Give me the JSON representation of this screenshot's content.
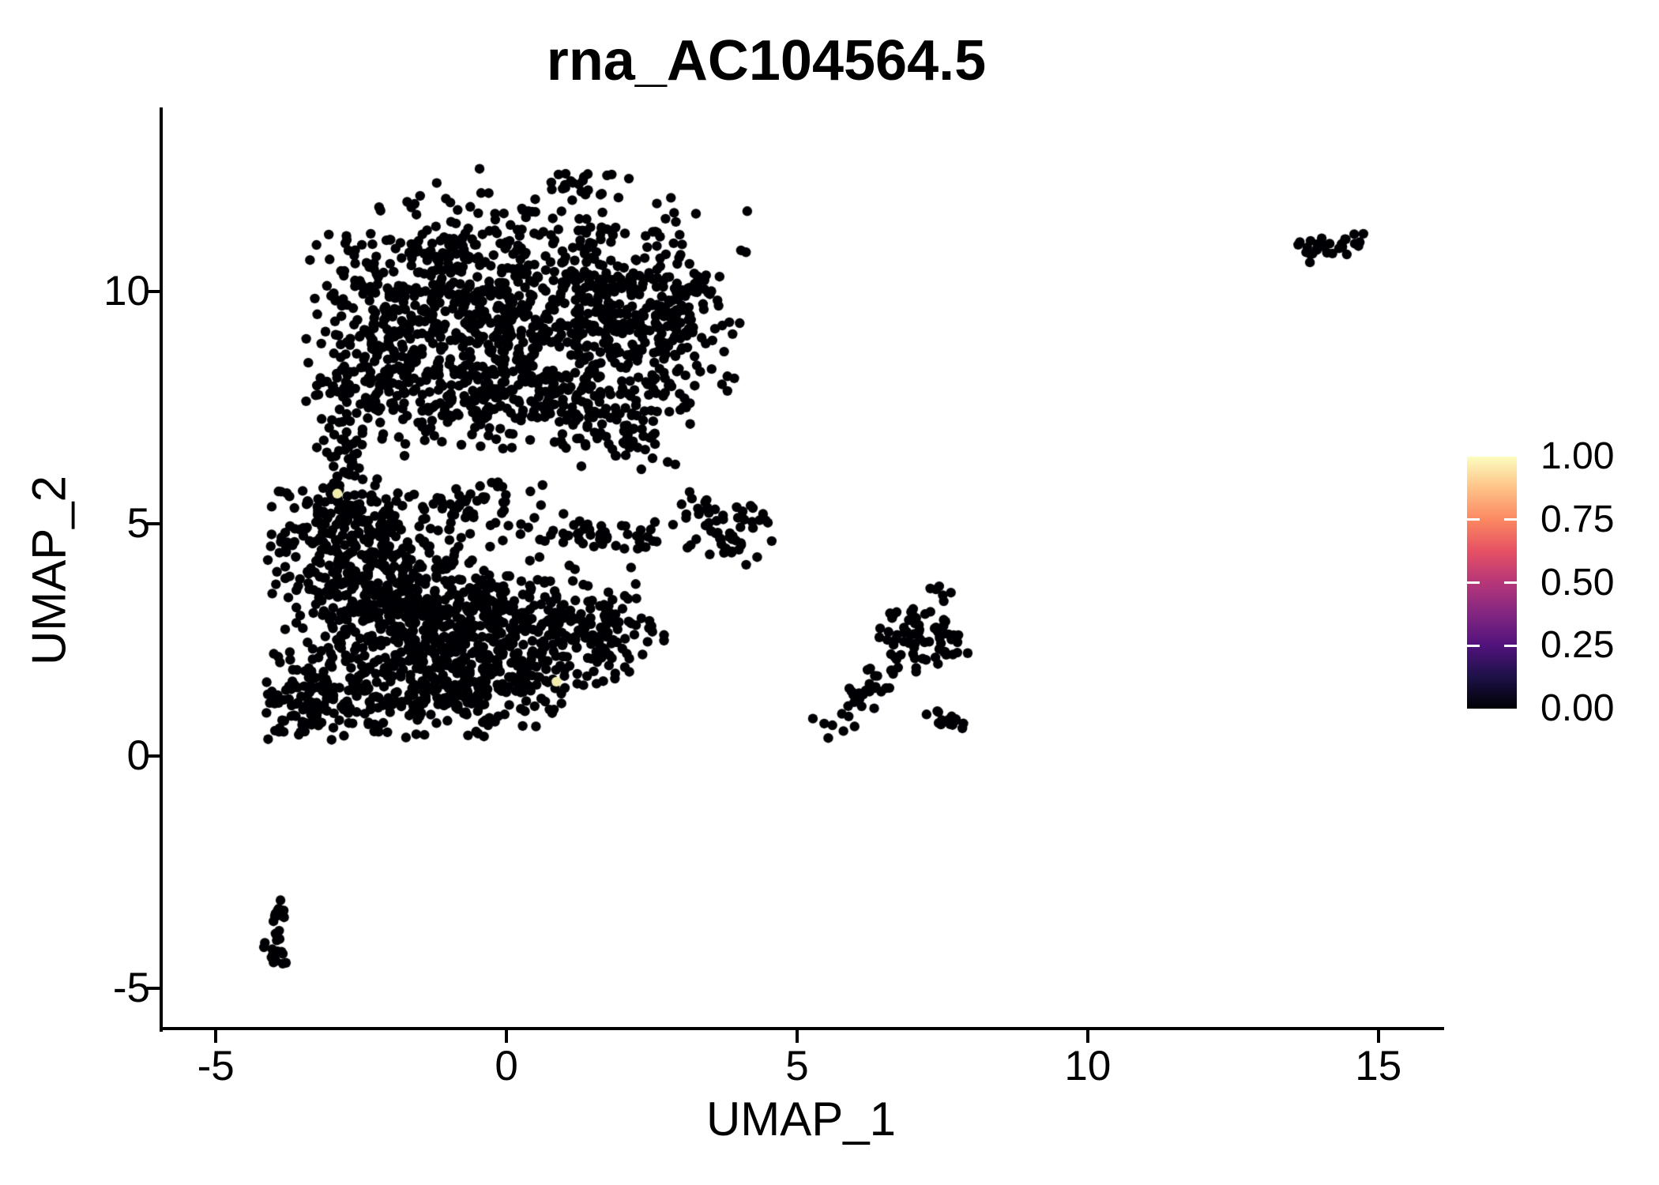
{
  "title": "rna_AC104564.5",
  "axes": {
    "x": {
      "label": "UMAP_1",
      "tick_labels": [
        "-5",
        "0",
        "5",
        "10",
        "15"
      ],
      "tick_values": [
        -5,
        0,
        5,
        10,
        15
      ]
    },
    "y": {
      "label": "UMAP_2",
      "tick_labels": [
        "-5",
        "0",
        "5",
        "10"
      ],
      "tick_values": [
        -5,
        0,
        5,
        10
      ]
    }
  },
  "colorbar": {
    "labels": [
      "1.00",
      "0.75",
      "0.50",
      "0.25",
      "0.00"
    ],
    "label_values": [
      1.0,
      0.75,
      0.5,
      0.25,
      0.0
    ],
    "tick_breaks": [
      0.25,
      0.5,
      0.75
    ],
    "gradient_bottom_to_top": [
      "#000004",
      "#1D1147",
      "#51127C",
      "#822681",
      "#B63679",
      "#E65164",
      "#FB8861",
      "#FEC287",
      "#FCFDBF"
    ],
    "position": "right"
  },
  "chart_data": {
    "type": "scatter",
    "title": "rna_AC104564.5",
    "xlabel": "UMAP_1",
    "ylabel": "UMAP_2",
    "xlim": [
      -5.94,
      16.09
    ],
    "ylim": [
      -5.87,
      13.93
    ],
    "x_ticks": [
      -5,
      0,
      5,
      10,
      15
    ],
    "y_ticks": [
      -5,
      0,
      5,
      10
    ],
    "grid": false,
    "legend_position": "right",
    "color_scale": {
      "name": "magma",
      "domain": [
        0.0,
        1.0
      ]
    },
    "point_color": "#000004",
    "point_radius_px": 6.2,
    "seed": 1337,
    "clusters": [
      {
        "type": "gauss",
        "center": [
          0.55,
          10.55
        ],
        "sd": [
          1.55,
          0.85
        ],
        "n": 320,
        "bounds": [
          -3.4,
          4.15,
          8.9,
          12.65
        ]
      },
      {
        "type": "gauss",
        "center": [
          -1.7,
          9.55
        ],
        "sd": [
          0.95,
          0.85
        ],
        "n": 240,
        "bounds": [
          -3.45,
          0.5,
          7.4,
          11.2
        ]
      },
      {
        "type": "gauss",
        "center": [
          0.9,
          8.95
        ],
        "sd": [
          1.35,
          0.75
        ],
        "n": 290,
        "bounds": [
          -2.5,
          3.9,
          7.0,
          11.5
        ]
      },
      {
        "type": "gauss",
        "center": [
          2.65,
          9.35
        ],
        "sd": [
          0.8,
          0.8
        ],
        "n": 170,
        "bounds": [
          0.5,
          4.2,
          7.3,
          11.4
        ]
      },
      {
        "type": "gauss",
        "center": [
          -0.55,
          7.85
        ],
        "sd": [
          1.25,
          0.6
        ],
        "n": 210,
        "bounds": [
          -3.3,
          2.0,
          6.6,
          9.5
        ]
      },
      {
        "type": "gauss",
        "center": [
          1.5,
          7.45
        ],
        "sd": [
          0.85,
          0.5
        ],
        "n": 110,
        "bounds": [
          -0.5,
          3.2,
          6.4,
          8.8
        ]
      },
      {
        "type": "gauss",
        "center": [
          -2.5,
          7.9
        ],
        "sd": [
          0.55,
          0.75
        ],
        "n": 85,
        "bounds": [
          -3.5,
          -1.3,
          6.2,
          9.6
        ]
      },
      {
        "type": "gauss",
        "center": [
          2.2,
          6.75
        ],
        "sd": [
          0.45,
          0.35
        ],
        "n": 22,
        "bounds": [
          1.2,
          3.1,
          6.1,
          7.6
        ]
      },
      {
        "type": "gauss",
        "center": [
          1.15,
          12.3
        ],
        "sd": [
          0.3,
          0.2
        ],
        "n": 14,
        "bounds": [
          0.5,
          1.8,
          11.9,
          12.65
        ]
      },
      {
        "type": "gauss",
        "center": [
          -2.7,
          6.25
        ],
        "sd": [
          0.35,
          0.45
        ],
        "n": 34,
        "bounds": [
          -3.4,
          -2.0,
          5.5,
          7.2
        ]
      },
      {
        "type": "gauss",
        "center": [
          -2.55,
          3.6
        ],
        "sd": [
          0.85,
          1.05
        ],
        "n": 330,
        "bounds": [
          -4.2,
          -0.7,
          0.9,
          5.75
        ]
      },
      {
        "type": "gauss",
        "center": [
          -1.15,
          2.95
        ],
        "sd": [
          1.05,
          0.95
        ],
        "n": 340,
        "bounds": [
          -3.9,
          1.0,
          0.7,
          5.5
        ]
      },
      {
        "type": "gauss",
        "center": [
          0.2,
          2.7
        ],
        "sd": [
          0.95,
          0.75
        ],
        "n": 260,
        "bounds": [
          -1.8,
          2.15,
          0.9,
          4.9
        ]
      },
      {
        "type": "gauss",
        "center": [
          -1.0,
          1.3
        ],
        "sd": [
          1.15,
          0.5
        ],
        "n": 180,
        "bounds": [
          -3.8,
          1.0,
          0.3,
          2.6
        ]
      },
      {
        "type": "gauss",
        "center": [
          -3.35,
          1.05
        ],
        "sd": [
          0.5,
          0.55
        ],
        "n": 110,
        "bounds": [
          -4.25,
          -2.3,
          0.25,
          2.3
        ]
      },
      {
        "type": "gauss",
        "center": [
          1.55,
          2.7
        ],
        "sd": [
          0.55,
          0.45
        ],
        "n": 80,
        "bounds": [
          0.4,
          2.75,
          1.5,
          3.9
        ]
      },
      {
        "type": "gauss",
        "center": [
          -2.95,
          5.2
        ],
        "sd": [
          0.6,
          0.5
        ],
        "n": 95,
        "bounds": [
          -4.2,
          -1.7,
          4.0,
          5.9
        ]
      },
      {
        "type": "strip",
        "from": [
          0.35,
          4.85
        ],
        "to": [
          2.55,
          4.6
        ],
        "jitter": 0.18,
        "n": 42
      },
      {
        "type": "gauss",
        "center": [
          -0.5,
          5.3
        ],
        "sd": [
          0.75,
          0.35
        ],
        "n": 55,
        "bounds": [
          -2.0,
          0.9,
          4.4,
          5.9
        ]
      },
      {
        "type": "gauss",
        "center": [
          3.35,
          5.15
        ],
        "sd": [
          0.28,
          0.42
        ],
        "n": 24,
        "bounds": [
          2.85,
          3.9,
          4.3,
          5.85
        ]
      },
      {
        "type": "gauss",
        "center": [
          4.05,
          4.8
        ],
        "sd": [
          0.32,
          0.42
        ],
        "n": 36,
        "bounds": [
          3.4,
          4.6,
          4.05,
          5.6
        ]
      },
      {
        "type": "gauss",
        "center": [
          7.1,
          2.55
        ],
        "sd": [
          0.42,
          0.42
        ],
        "n": 68,
        "bounds": [
          6.2,
          7.95,
          1.6,
          3.4
        ]
      },
      {
        "type": "strip",
        "from": [
          5.45,
          0.5
        ],
        "to": [
          6.65,
          1.95
        ],
        "jitter": 0.17,
        "n": 38
      },
      {
        "type": "strip",
        "from": [
          7.3,
          0.9
        ],
        "to": [
          7.95,
          0.72
        ],
        "jitter": 0.1,
        "n": 16
      },
      {
        "type": "gauss",
        "center": [
          7.35,
          3.5
        ],
        "sd": [
          0.12,
          0.12
        ],
        "n": 5,
        "bounds": [
          7.0,
          7.7,
          3.2,
          3.75
        ]
      },
      {
        "type": "strip",
        "from": [
          13.7,
          10.85
        ],
        "to": [
          14.72,
          11.12
        ],
        "jitter": 0.11,
        "n": 30
      },
      {
        "type": "strip",
        "from": [
          -3.83,
          -3.1
        ],
        "to": [
          -4.0,
          -4.35
        ],
        "jitter": 0.09,
        "n": 16
      },
      {
        "type": "gauss",
        "center": [
          -3.95,
          -4.3
        ],
        "sd": [
          0.12,
          0.16
        ],
        "n": 12,
        "bounds": [
          -4.25,
          -3.6,
          -4.55,
          -3.95
        ]
      },
      {
        "type": "gauss",
        "center": [
          2.72,
          2.58
        ],
        "sd": [
          0.05,
          0.05
        ],
        "n": 1,
        "bounds": [
          2.5,
          2.9,
          2.4,
          2.8
        ]
      }
    ],
    "highlight_points": [
      {
        "x": -2.91,
        "y": 5.65,
        "value": 1.0,
        "color": "#F2EDAD"
      },
      {
        "x": 0.86,
        "y": 1.6,
        "value": 1.0,
        "color": "#F2EDAD"
      }
    ]
  }
}
